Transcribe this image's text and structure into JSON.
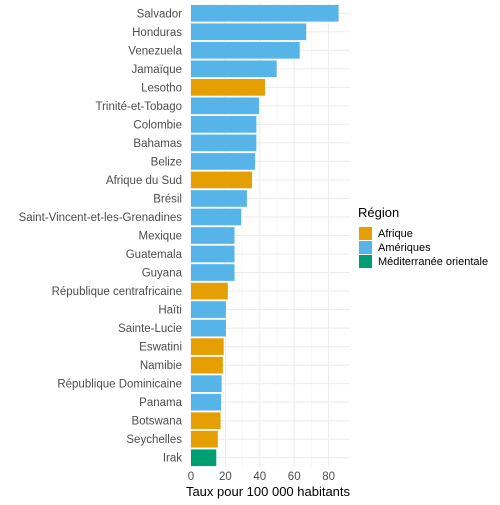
{
  "chart_data": {
    "type": "bar",
    "orientation": "horizontal",
    "title": "",
    "xlabel": "Taux pour 100 000 habitants",
    "ylabel": "",
    "xlim": [
      0,
      90
    ],
    "xticks": [
      0,
      20,
      40,
      60,
      80
    ],
    "grid": true,
    "legend_position": "right",
    "legend_title": "Région",
    "regions": [
      {
        "name": "Afrique",
        "color": "#E69F00"
      },
      {
        "name": "Amériques",
        "color": "#56B4E9"
      },
      {
        "name": "Méditerranée orientale",
        "color": "#009E73"
      }
    ],
    "categories": [
      "Salvador",
      "Honduras",
      "Venezuela",
      "Jamaïque",
      "Lesotho",
      "Trinité-et-Tobago",
      "Colombie",
      "Bahamas",
      "Belize",
      "Afrique du Sud",
      "Brésil",
      "Saint-Vincent-et-les-Grenadines",
      "Mexique",
      "Guatemala",
      "Guyana",
      "République centrafricaine",
      "Haïti",
      "Sainte-Lucie",
      "Eswatini",
      "Namibie",
      "République Dominicaine",
      "Panama",
      "Botswana",
      "Seychelles",
      "Irak"
    ],
    "values": [
      85.8,
      67.0,
      63.2,
      49.8,
      43.0,
      39.5,
      38.0,
      38.0,
      37.3,
      35.5,
      32.5,
      29.2,
      25.3,
      25.3,
      25.3,
      21.4,
      20.3,
      20.3,
      19.0,
      18.5,
      17.8,
      17.5,
      17.2,
      15.6,
      14.7
    ],
    "region_of": [
      "Amériques",
      "Amériques",
      "Amériques",
      "Amériques",
      "Afrique",
      "Amériques",
      "Amériques",
      "Amériques",
      "Amériques",
      "Afrique",
      "Amériques",
      "Amériques",
      "Amériques",
      "Amériques",
      "Amériques",
      "Afrique",
      "Amériques",
      "Amériques",
      "Afrique",
      "Afrique",
      "Amériques",
      "Amériques",
      "Afrique",
      "Afrique",
      "Méditerranée orientale"
    ]
  }
}
